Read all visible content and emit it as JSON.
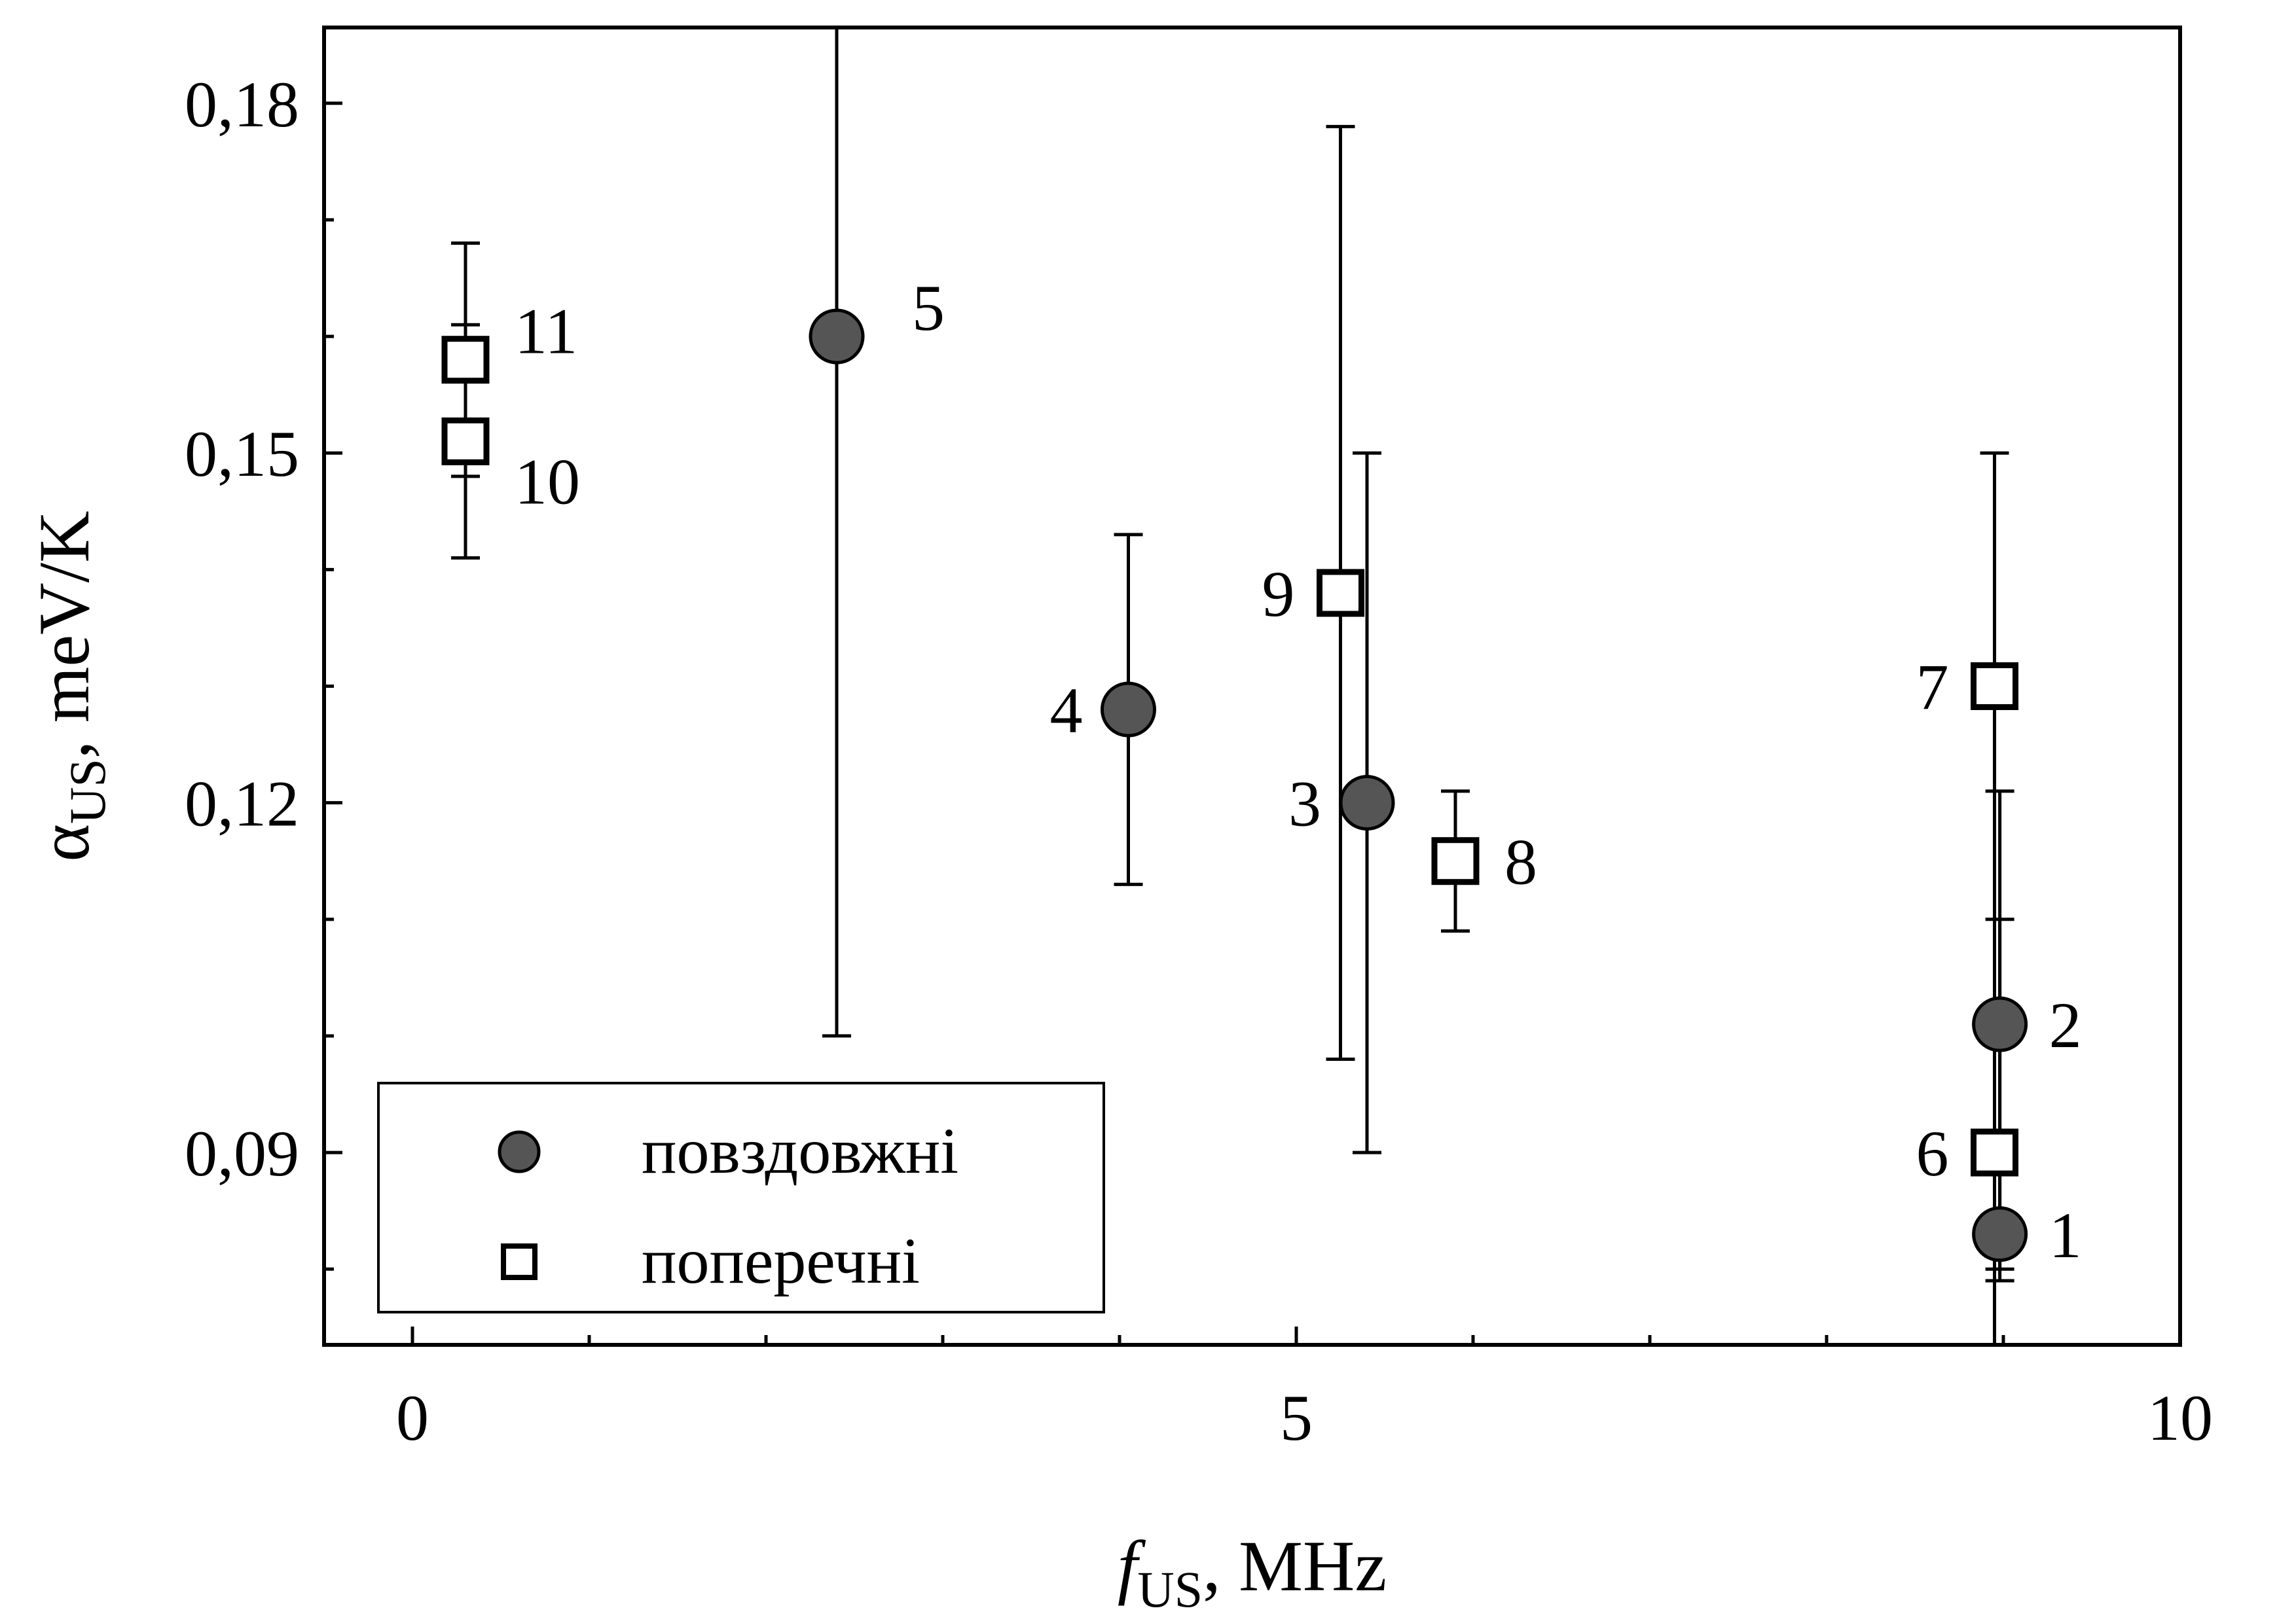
{
  "chart_data": {
    "type": "scatter",
    "title": "",
    "xlabel": {
      "main": "f",
      "sub": "US",
      "rest": ", MHz"
    },
    "ylabel": {
      "main": "α",
      "sub": "US",
      "rest": ", meV/K"
    },
    "xlim": [
      -0.5,
      10
    ],
    "ylim": [
      0.0735,
      0.1865
    ],
    "x_ticks": [
      {
        "value": 0,
        "label": "0"
      },
      {
        "value": 5,
        "label": "5"
      },
      {
        "value": 10,
        "label": "10"
      }
    ],
    "x_minor_ticks": [
      1,
      2,
      3,
      4,
      6,
      7,
      8,
      9
    ],
    "y_ticks": [
      {
        "value": 0.09,
        "label": "0,09"
      },
      {
        "value": 0.12,
        "label": "0,12"
      },
      {
        "value": 0.15,
        "label": "0,15"
      },
      {
        "value": 0.18,
        "label": "0,18"
      }
    ],
    "y_minor_ticks": [
      0.08,
      0.1,
      0.11,
      0.13,
      0.14,
      0.16,
      0.17
    ],
    "grid": false,
    "legend_position": "bottom-left",
    "series": [
      {
        "name": "повздовжні",
        "marker": "circle",
        "fill": "#555555",
        "points": [
          {
            "label": "1",
            "x": 8.98,
            "y": 0.083,
            "err_low": 0.079,
            "err_high": 0.11
          },
          {
            "label": "2",
            "x": 8.98,
            "y": 0.101,
            "err_low": 0.08,
            "err_high": 0.121
          },
          {
            "label": "3",
            "x": 5.4,
            "y": 0.12,
            "err_low": 0.09,
            "err_high": 0.15
          },
          {
            "label": "4",
            "x": 4.05,
            "y": 0.128,
            "err_low": 0.113,
            "err_high": 0.143
          },
          {
            "label": "5",
            "x": 2.4,
            "y": 0.16,
            "err_low": 0.1,
            "err_high": 0.1865
          }
        ]
      },
      {
        "name": "поперечні",
        "marker": "square",
        "fill": "#ffffff",
        "points": [
          {
            "label": "6",
            "x": 8.95,
            "y": 0.09,
            "err_low": 0.0735,
            "err_high": 0.1
          },
          {
            "label": "7",
            "x": 8.95,
            "y": 0.13,
            "err_low": 0.0735,
            "err_high": 0.15
          },
          {
            "label": "8",
            "x": 5.9,
            "y": 0.115,
            "err_low": 0.109,
            "err_high": 0.121
          },
          {
            "label": "9",
            "x": 5.25,
            "y": 0.138,
            "err_low": 0.098,
            "err_high": 0.178
          },
          {
            "label": "10",
            "x": 0.3,
            "y": 0.151,
            "err_low": 0.141,
            "err_high": 0.161
          },
          {
            "label": "11",
            "x": 0.3,
            "y": 0.158,
            "err_low": 0.148,
            "err_high": 0.168
          }
        ]
      }
    ]
  }
}
